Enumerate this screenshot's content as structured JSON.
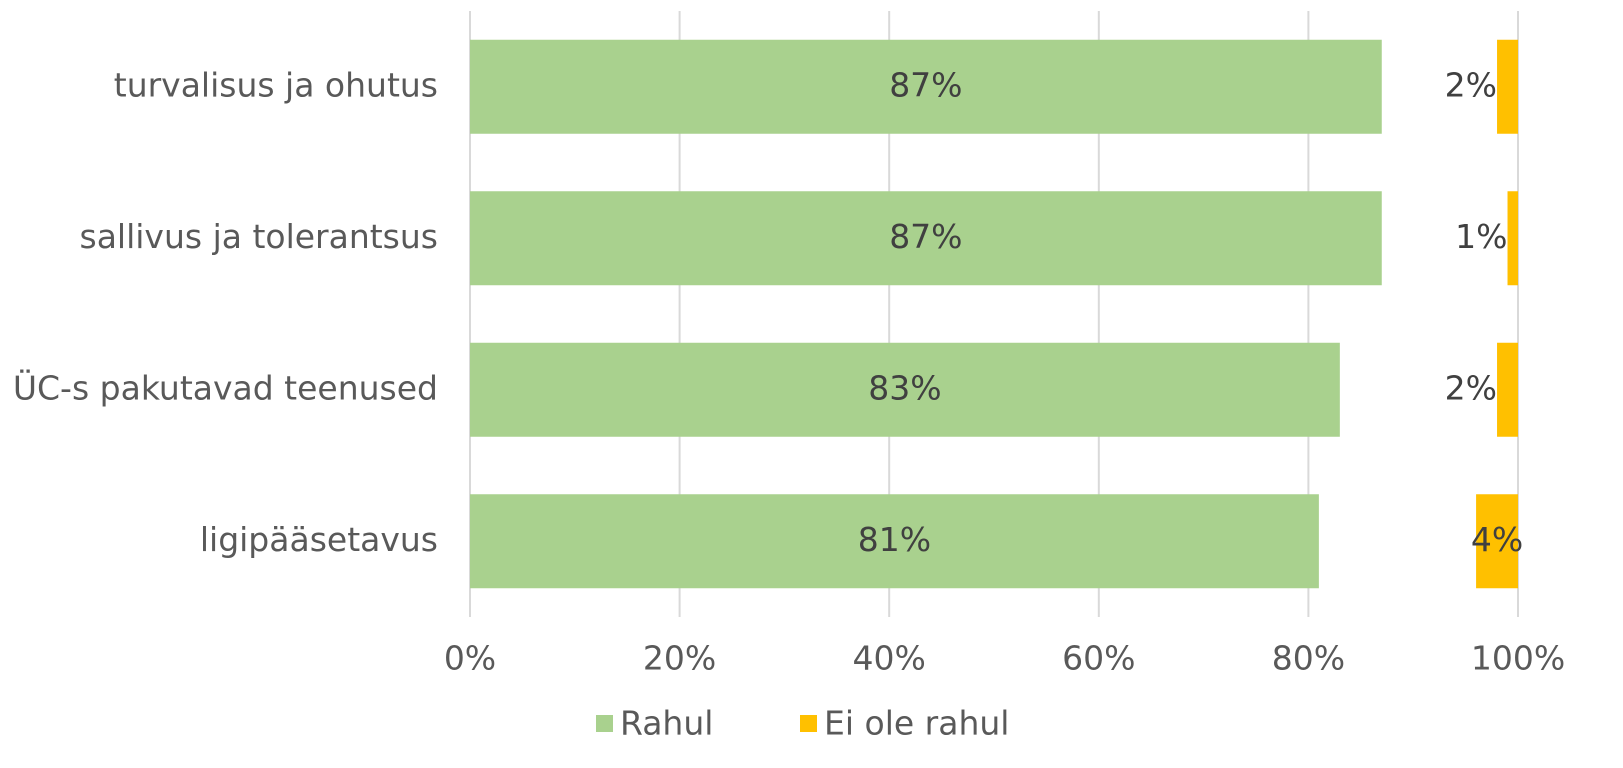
{
  "chart_data": {
    "type": "bar",
    "orientation": "horizontal",
    "categories": [
      "turvalisus ja ohutus",
      "sallivus ja tolerantsus",
      "ÜC-s pakutavad teenused",
      "ligipääsetavus"
    ],
    "series": [
      {
        "name": "Rahul",
        "color": "#a9d18e",
        "anchor": "start",
        "values": [
          87,
          87,
          83,
          81
        ],
        "value_labels": [
          "87%",
          "87%",
          "83%",
          "81%"
        ]
      },
      {
        "name": "Ei ole rahul",
        "color": "#ffc000",
        "anchor": "end",
        "values": [
          2,
          1,
          2,
          4
        ],
        "value_labels": [
          "2%",
          "1%",
          "2%",
          "4%"
        ]
      }
    ],
    "xlim": [
      0,
      100
    ],
    "xticks": [
      {
        "value": 0,
        "label": "0%"
      },
      {
        "value": 20,
        "label": "20%"
      },
      {
        "value": 40,
        "label": "40%"
      },
      {
        "value": 60,
        "label": "60%"
      },
      {
        "value": 80,
        "label": "80%"
      },
      {
        "value": 100,
        "label": "100%"
      }
    ],
    "grid": true,
    "legend": "bottom"
  }
}
